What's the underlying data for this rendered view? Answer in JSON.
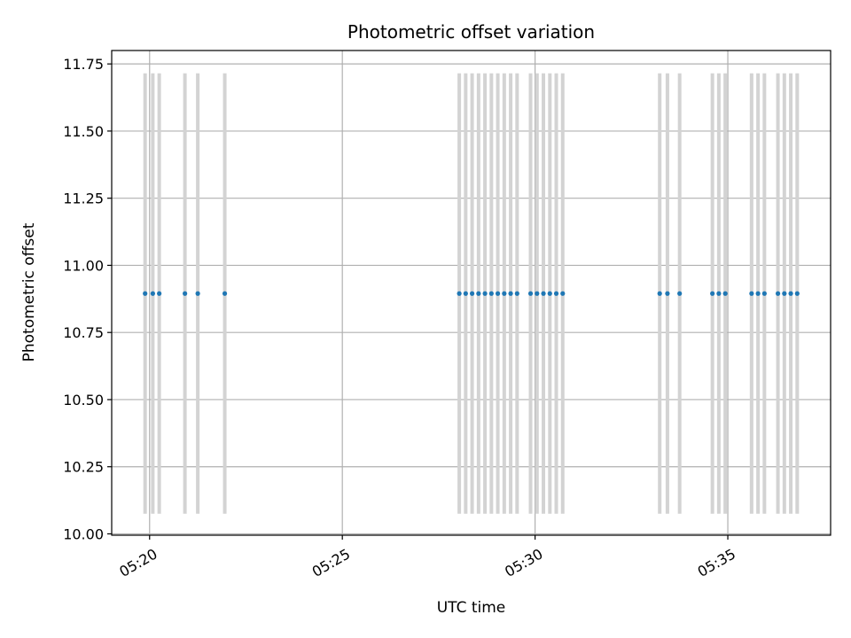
{
  "chart_data": {
    "type": "scatter",
    "title": "Photometric offset variation",
    "xlabel": "UTC time",
    "ylabel": "Photometric offset",
    "grid": true,
    "error_bar_color": "#d3d3d3",
    "point_color": "#1f77b4",
    "xlim": [
      "05:19:01",
      "05:37:40"
    ],
    "ylim": [
      9.995,
      11.8
    ],
    "x_ticks": [
      "05:20",
      "05:25",
      "05:30",
      "05:35"
    ],
    "y_ticks": [
      "10.00",
      "10.25",
      "10.50",
      "10.75",
      "11.00",
      "11.25",
      "11.50",
      "11.75"
    ],
    "y_error": 0.82,
    "series": [
      {
        "x": [
          "05:19:53",
          "05:20:05",
          "05:20:15",
          "05:20:55",
          "05:21:15",
          "05:21:57",
          "05:28:02",
          "05:28:12",
          "05:28:22",
          "05:28:32",
          "05:28:42",
          "05:28:52",
          "05:29:02",
          "05:29:12",
          "05:29:22",
          "05:29:32",
          "05:29:53",
          "05:30:03",
          "05:30:13",
          "05:30:23",
          "05:30:33",
          "05:30:43",
          "05:33:14",
          "05:33:26",
          "05:33:45",
          "05:34:36",
          "05:34:46",
          "05:34:56",
          "05:35:37",
          "05:35:47",
          "05:35:57",
          "05:36:18",
          "05:36:28",
          "05:36:38",
          "05:36:48"
        ],
        "y": [
          10.895,
          10.895,
          10.895,
          10.895,
          10.895,
          10.895,
          10.895,
          10.895,
          10.895,
          10.895,
          10.895,
          10.895,
          10.895,
          10.895,
          10.895,
          10.895,
          10.895,
          10.895,
          10.895,
          10.895,
          10.895,
          10.895,
          10.895,
          10.895,
          10.895,
          10.895,
          10.895,
          10.895,
          10.895,
          10.895,
          10.895,
          10.895,
          10.895,
          10.895,
          10.895
        ]
      }
    ]
  }
}
